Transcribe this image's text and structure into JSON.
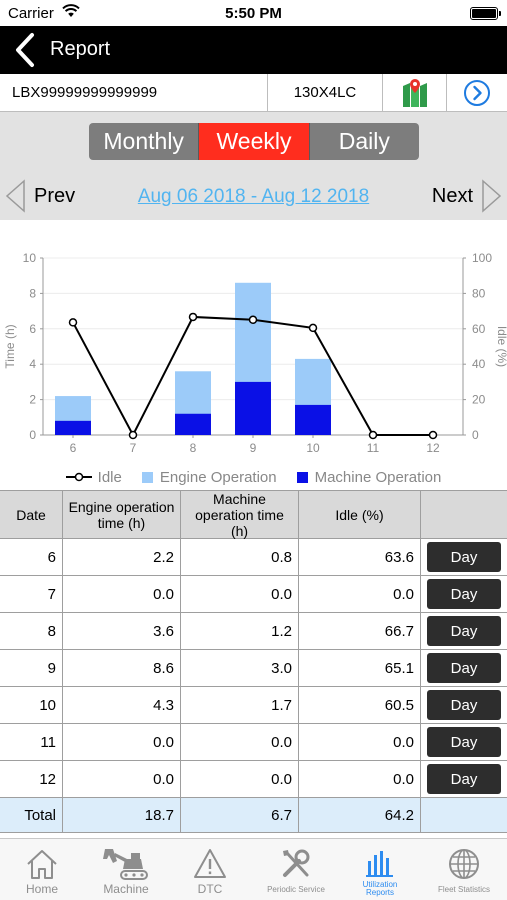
{
  "status_bar": {
    "carrier": "Carrier",
    "time": "5:50 PM"
  },
  "nav": {
    "title": "Report"
  },
  "machine": {
    "serial": "LBX99999999999999",
    "model": "130X4LC"
  },
  "period_tabs": [
    {
      "label": "Monthly",
      "active": false
    },
    {
      "label": "Weekly",
      "active": true
    },
    {
      "label": "Daily",
      "active": false
    }
  ],
  "pager": {
    "prev": "Prev",
    "next": "Next",
    "range": "Aug 06 2018 - Aug 12 2018"
  },
  "chart_data": {
    "type": "bar",
    "categories": [
      "6",
      "7",
      "8",
      "9",
      "10",
      "11",
      "12"
    ],
    "series": [
      {
        "name": "Engine Operation",
        "type": "bar",
        "axis": "left",
        "color": "#9ccbf9",
        "values": [
          2.2,
          0.0,
          3.6,
          8.6,
          4.3,
          0.0,
          0.0
        ]
      },
      {
        "name": "Machine Operation",
        "type": "bar",
        "axis": "left",
        "color": "#0a10e6",
        "values": [
          0.8,
          0.0,
          1.2,
          3.0,
          1.7,
          0.0,
          0.0
        ]
      },
      {
        "name": "Idle",
        "type": "line",
        "axis": "right",
        "color": "#000000",
        "values": [
          63.6,
          0.0,
          66.7,
          65.1,
          60.5,
          0.0,
          0.0
        ]
      }
    ],
    "ylabel": "Time (h)",
    "y2label": "Idle (%)",
    "ylim": [
      0,
      10
    ],
    "y2lim": [
      0,
      100
    ],
    "yticks": [
      "0",
      "2",
      "4",
      "6",
      "8",
      "10"
    ],
    "y2ticks": [
      "0",
      "20",
      "40",
      "60",
      "80",
      "100"
    ],
    "legend": {
      "position": "bottom",
      "items": [
        "Idle",
        "Engine Operation",
        "Machine Operation"
      ]
    }
  },
  "table": {
    "headers": [
      "Date",
      "Engine operation time (h)",
      "Machine operation time (h)",
      "Idle (%)"
    ],
    "rows": [
      {
        "date": "6",
        "engine": "2.2",
        "machine": "0.8",
        "idle": "63.6",
        "button": "Day"
      },
      {
        "date": "7",
        "engine": "0.0",
        "machine": "0.0",
        "idle": "0.0",
        "button": "Day"
      },
      {
        "date": "8",
        "engine": "3.6",
        "machine": "1.2",
        "idle": "66.7",
        "button": "Day"
      },
      {
        "date": "9",
        "engine": "8.6",
        "machine": "3.0",
        "idle": "65.1",
        "button": "Day"
      },
      {
        "date": "10",
        "engine": "4.3",
        "machine": "1.7",
        "idle": "60.5",
        "button": "Day"
      },
      {
        "date": "11",
        "engine": "0.0",
        "machine": "0.0",
        "idle": "0.0",
        "button": "Day"
      },
      {
        "date": "12",
        "engine": "0.0",
        "machine": "0.0",
        "idle": "0.0",
        "button": "Day"
      }
    ],
    "total": {
      "label": "Total",
      "engine": "18.7",
      "machine": "6.7",
      "idle": "64.2"
    }
  },
  "tabbar": [
    {
      "label": "Home",
      "icon": "home-icon",
      "small": false,
      "active": false
    },
    {
      "label": "Machine",
      "icon": "excavator-icon",
      "small": false,
      "active": false
    },
    {
      "label": "DTC",
      "icon": "warning-icon",
      "small": false,
      "active": false
    },
    {
      "label": "Periodic Service",
      "icon": "tools-icon",
      "small": true,
      "active": false
    },
    {
      "label": "Utilization Reports",
      "icon": "bar-chart-icon",
      "small": true,
      "active": true
    },
    {
      "label": "Fleet Statistics",
      "icon": "globe-icon",
      "small": true,
      "active": false
    }
  ],
  "colors": {
    "accent_active": "#ff2d1e",
    "link": "#51b4f0",
    "tab_active": "#2d8cf0"
  }
}
